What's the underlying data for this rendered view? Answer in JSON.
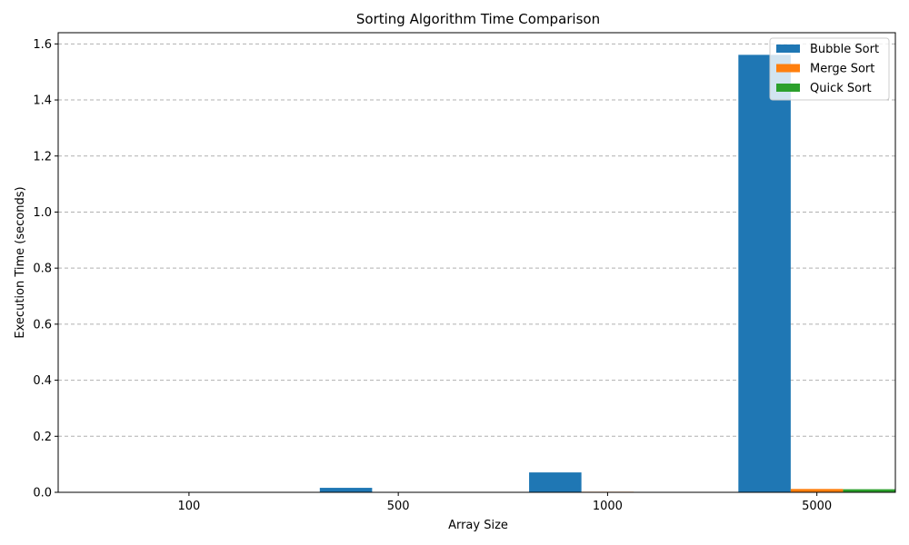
{
  "chart_data": {
    "type": "bar",
    "title": "Sorting Algorithm Time Comparison",
    "xlabel": "Array Size",
    "ylabel": "Execution Time (seconds)",
    "categories": [
      "100",
      "500",
      "1000",
      "5000"
    ],
    "ylim": [
      0,
      1.64
    ],
    "yticks": [
      "0.0",
      "0.2",
      "0.4",
      "0.6",
      "0.8",
      "1.0",
      "1.2",
      "1.4",
      "1.6"
    ],
    "grid": "y-dashed",
    "legend_position": "top-right",
    "series": [
      {
        "name": "Bubble Sort",
        "color": "#1f77b4",
        "values": [
          0.0008,
          0.016,
          0.071,
          1.561
        ]
      },
      {
        "name": "Merge Sort",
        "color": "#ff7f0e",
        "values": [
          0.0002,
          0.001,
          0.002,
          0.012
        ]
      },
      {
        "name": "Quick Sort",
        "color": "#2ca02c",
        "values": [
          0.0001,
          0.0006,
          0.0015,
          0.011
        ]
      }
    ]
  }
}
